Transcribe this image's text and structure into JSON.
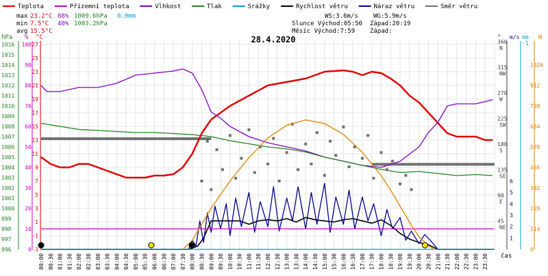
{
  "chart_data": {
    "type": "line",
    "title": "28.4.2020",
    "legend": [
      {
        "label": "Teplota",
        "color": "#e00000"
      },
      {
        "label": "Přízemní teplota",
        "color": "#c000c0"
      },
      {
        "label": "Vlhkost",
        "color": "#8000c0"
      },
      {
        "label": "Tlak",
        "color": "#208020"
      },
      {
        "label": "Srážky",
        "color": "#00a0d0"
      },
      {
        "label": "Rychlost větru",
        "color": "#000000"
      },
      {
        "label": "Náraz větru",
        "color": "#000090"
      },
      {
        "label": "Směr větru",
        "color": "#707070"
      }
    ],
    "stats": {
      "max": {
        "label": "max",
        "temp": "23.2°C",
        "hum": "88%",
        "press": "1009.6hPa",
        "rain": "0.0mm"
      },
      "min": {
        "label": "min",
        "temp": "7.5°C",
        "hum": "40%",
        "press": "1003.2hPa"
      },
      "avg": {
        "label": "avg",
        "temp": "15.5°C"
      }
    },
    "info": {
      "ws": "WS:3.6m/s",
      "wg": "WG:5.9m/s",
      "sun_rise": "Slunce Východ:05:50",
      "sun_set": "Západ:20:19",
      "moon_rise": "Měsíc  Východ:7:59",
      "moon_set": "Západ:"
    },
    "axis_units": {
      "hpa": "hPa",
      "pct": "%",
      "degc": "°C",
      "deg": "°",
      "ms": "m/s",
      "mm": "mm",
      "w": "W",
      "time": "čas"
    },
    "axes": {
      "hpa_ticks": [
        1016,
        1015,
        1014,
        1013,
        1012,
        1011,
        1010,
        1009,
        1008,
        1007,
        1006,
        1005,
        1004,
        1003,
        1002,
        1001,
        1000,
        999,
        998,
        997,
        996
      ],
      "pct_ticks": [
        100,
        90,
        80,
        70,
        60,
        50,
        40,
        30,
        20,
        10,
        0
      ],
      "temp_ticks": [
        27,
        25,
        23,
        21,
        19,
        17,
        15,
        13,
        11,
        9,
        7,
        5,
        3,
        1,
        -1,
        -3
      ],
      "dir_ticks": [
        {
          "deg": 360,
          "dir": "N"
        },
        {
          "deg": 315,
          "dir": "NW"
        },
        {
          "deg": 270,
          "dir": "W"
        },
        {
          "deg": 225,
          "dir": "SW"
        },
        {
          "deg": 180,
          "dir": "S"
        },
        {
          "deg": 135,
          "dir": "SE"
        },
        {
          "deg": 90,
          "dir": "E"
        },
        {
          "deg": 45,
          "dir": "NE"
        }
      ],
      "ms_ticks": [
        6,
        5,
        4,
        3,
        2,
        1
      ],
      "mm_ticks": [
        "-1"
      ],
      "w_ticks": [
        1026,
        912,
        798,
        684,
        570,
        456,
        342,
        228,
        114,
        0
      ],
      "time_labels": [
        "00:00",
        "00:30",
        "01:00",
        "01:30",
        "02:00",
        "02:30",
        "03:00",
        "03:30",
        "04:00",
        "04:30",
        "05:00",
        "05:30",
        "06:00",
        "06:30",
        "07:00",
        "07:30",
        "08:00",
        "08:30",
        "09:00",
        "09:30",
        "10:00",
        "10:30",
        "11:00",
        "11:30",
        "12:00",
        "12:30",
        "13:00",
        "13:30",
        "14:00",
        "14:30",
        "15:00",
        "15:30",
        "16:00",
        "16:30",
        "17:00",
        "17:30",
        "18:00",
        "18:30",
        "19:00",
        "19:30",
        "20:00",
        "20:30",
        "21:00",
        "21:30",
        "22:00",
        "22:30",
        "23:00",
        "23:30"
      ]
    },
    "series": [
      {
        "name": "Teplota",
        "color": "#e00000",
        "unit": "°C",
        "x": [
          0,
          0.5,
          1,
          1.5,
          2,
          2.5,
          3,
          3.5,
          4,
          4.5,
          5,
          5.5,
          6,
          6.5,
          7,
          7.5,
          8,
          8.5,
          9,
          9.5,
          10,
          11,
          12,
          13,
          14,
          15,
          16,
          16.5,
          17,
          17.5,
          18,
          18.5,
          19,
          19.5,
          20,
          20.5,
          21,
          21.5,
          22,
          22.5,
          23,
          23.5,
          23.9
        ],
        "y": [
          10.5,
          9.5,
          9,
          9,
          9.5,
          9.5,
          9,
          8.5,
          8,
          7.5,
          7.5,
          7.5,
          7.8,
          7.8,
          8,
          9,
          11,
          14,
          16,
          17,
          18,
          19.5,
          21,
          21.5,
          22,
          23,
          23.2,
          23,
          22.5,
          23,
          22.8,
          22,
          21,
          19.5,
          18.5,
          17,
          15.5,
          14,
          13.5,
          13.5,
          13.5,
          13,
          13
        ]
      },
      {
        "name": "Vlhkost",
        "color": "#8000c0",
        "unit": "%",
        "x": [
          0,
          0.3,
          1,
          2,
          3,
          4,
          5,
          6,
          7,
          7.5,
          8,
          8.5,
          9,
          9.5,
          10,
          11,
          12,
          13,
          14,
          15,
          16,
          17,
          18,
          19,
          20,
          20.5,
          21,
          21.5,
          22,
          23,
          23.9
        ],
        "y": [
          80,
          77,
          77,
          79,
          79,
          81,
          85,
          86,
          87,
          88,
          86,
          78,
          67,
          64,
          60,
          55,
          52,
          50,
          48,
          45,
          43,
          41,
          40,
          43,
          50,
          57,
          62,
          70,
          71,
          71,
          73
        ]
      },
      {
        "name": "Tlak",
        "color": "#208020",
        "unit": "hPa",
        "x": [
          0,
          1,
          2,
          3,
          4,
          5,
          6,
          7,
          8,
          9,
          10,
          11,
          12,
          13,
          14,
          15,
          16,
          17,
          18,
          19,
          20,
          21,
          22,
          23,
          23.9
        ],
        "y": [
          1008.3,
          1008,
          1007.7,
          1007.6,
          1007.5,
          1007.4,
          1007.4,
          1007.3,
          1007.2,
          1007,
          1006.6,
          1006.3,
          1006,
          1005.8,
          1005.5,
          1005,
          1004.6,
          1004.2,
          1003.8,
          1003.5,
          1003.6,
          1003.4,
          1003.2,
          1003.3,
          1003.2
        ]
      },
      {
        "name": "Rychlost větru",
        "color": "#000000",
        "unit": "m/s",
        "x": [
          0,
          7.8,
          8,
          8.3,
          8.6,
          9,
          9.5,
          10,
          10.5,
          11,
          11.5,
          12,
          12.5,
          13,
          13.5,
          14,
          14.5,
          15,
          15.5,
          16,
          16.5,
          17,
          17.5,
          18,
          18.5,
          19,
          19.5,
          20,
          20.5,
          21,
          23.9
        ],
        "y": [
          0,
          0,
          0.1,
          0.3,
          1,
          2.5,
          2.5,
          2.5,
          2.5,
          2.2,
          2.5,
          2.6,
          2.5,
          2.7,
          2.4,
          2.8,
          2.6,
          2.5,
          2.4,
          2.6,
          2.7,
          2.5,
          2.3,
          2.6,
          2.1,
          1.4,
          0.9,
          0.6,
          0.4,
          0,
          0
        ]
      },
      {
        "name": "Náraz větru",
        "color": "#000090",
        "unit": "m/s",
        "x": [
          0,
          7.8,
          8,
          8.2,
          8.4,
          8.6,
          8.8,
          9,
          9.2,
          9.5,
          9.8,
          10,
          10.3,
          10.6,
          11,
          11.3,
          11.6,
          12,
          12.3,
          12.6,
          13,
          13.3,
          13.6,
          14,
          14.3,
          14.6,
          15,
          15.3,
          15.6,
          16,
          16.3,
          16.6,
          17,
          17.3,
          17.6,
          18,
          18.3,
          18.6,
          19,
          19.3,
          19.6,
          20,
          20.3,
          20.6,
          21,
          23.9
        ],
        "y": [
          0,
          0,
          0.8,
          0.3,
          2.5,
          0.6,
          3.2,
          1.5,
          3.8,
          1.8,
          4,
          1.2,
          4.5,
          2,
          5,
          1.5,
          4.2,
          2,
          5.5,
          1.6,
          4.5,
          2.5,
          5.5,
          1.8,
          5,
          2.2,
          5.8,
          1.5,
          4.6,
          2.2,
          5.2,
          1.8,
          4.6,
          2.5,
          4,
          1.2,
          3.5,
          1.8,
          2.8,
          0.8,
          1.6,
          0.5,
          1.3,
          0.8,
          0,
          0
        ]
      },
      {
        "name": "Srážky",
        "color": "#00a0d0",
        "unit": "mm",
        "x": [
          0,
          23.9
        ],
        "y": [
          0,
          0
        ]
      },
      {
        "name": "Přízemní teplota",
        "color": "#c000c0",
        "unit": "°C",
        "x": [
          0,
          23.9
        ],
        "y": [
          0,
          0
        ]
      },
      {
        "name": "Směr větru",
        "color": "#707070",
        "unit": "°",
        "x": [
          8.5,
          8.8,
          9,
          9.3,
          9.6,
          10,
          10.3,
          10.6,
          11,
          11.3,
          11.6,
          12,
          12.3,
          12.6,
          13,
          13.3,
          13.6,
          14,
          14.3,
          14.6,
          15,
          15.3,
          15.6,
          16,
          16.3,
          16.6,
          17,
          17.3,
          17.6,
          18,
          18.3,
          18.6,
          19,
          19.3,
          19.6
        ],
        "y": [
          120,
          190,
          105,
          175,
          140,
          200,
          125,
          160,
          210,
          135,
          180,
          150,
          195,
          120,
          170,
          220,
          140,
          185,
          150,
          205,
          130,
          190,
          165,
          215,
          145,
          180,
          160,
          200,
          125,
          170,
          140,
          155,
          115,
          130,
          105
        ]
      },
      {
        "name": "Sluneční záření",
        "color": "#e08000",
        "unit": "W",
        "x": [
          7.5,
          8,
          9,
          10,
          11,
          12,
          13,
          14,
          15,
          16,
          17,
          18,
          18.5,
          19,
          19.5,
          20,
          20.5,
          20.8
        ],
        "y": [
          0,
          50,
          230,
          380,
          510,
          620,
          690,
          720,
          700,
          640,
          540,
          410,
          330,
          240,
          150,
          70,
          20,
          0
        ]
      }
    ],
    "ref_lines": [
      {
        "name": "avg-temp",
        "temp": 13.2,
        "x": [
          0,
          9
        ],
        "color": "#707070"
      },
      {
        "name": "avg-pressure",
        "hpa": 1004.3,
        "x": [
          17.5,
          24
        ],
        "color": "#707070"
      },
      {
        "name": "freezing-line",
        "pct": 10,
        "color": "#c000c0"
      }
    ],
    "markers": [
      {
        "name": "sunrise",
        "hour": 5.83,
        "color": "#ffe000"
      },
      {
        "name": "moonrise",
        "hour": 7.98,
        "color": "#000000"
      },
      {
        "name": "sunset",
        "hour": 20.32,
        "color": "#ffe000"
      },
      {
        "name": "moonset-start",
        "hour": 0,
        "color": "#000000"
      }
    ]
  }
}
